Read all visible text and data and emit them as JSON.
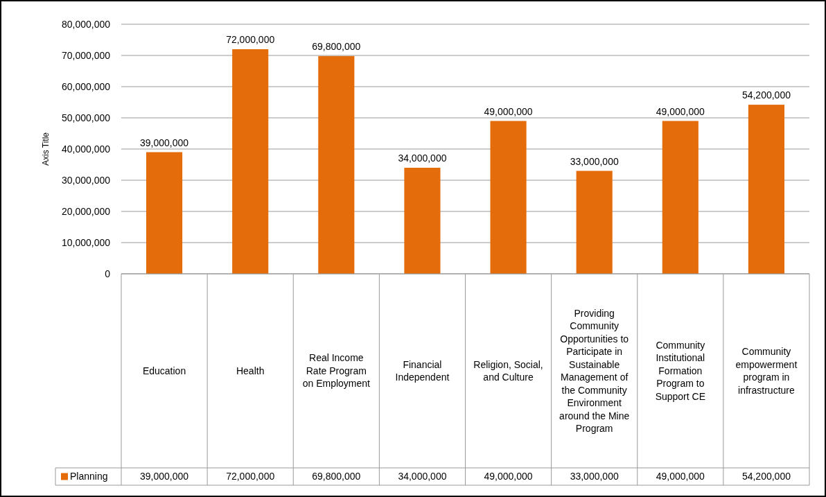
{
  "chart_data": {
    "type": "bar",
    "ylabel": "Axis Title",
    "categories": [
      "Education",
      "Health",
      "Real Income Rate Program on Employment",
      "Financial Independent",
      "Religion, Social, and Culture",
      "Providing Community Opportunities to Participate in Sustainable Management of the Community Environment around the Mine Program",
      "Community Institutional Formation Program to Support CE",
      "Community empowerment program in infrastructure"
    ],
    "series": [
      {
        "name": "Planning",
        "color": "#e46c0a",
        "values": [
          39000000,
          72000000,
          69800000,
          34000000,
          49000000,
          33000000,
          49000000,
          54200000
        ],
        "value_labels": [
          "39,000,000",
          "72,000,000",
          "69,800,000",
          "34,000,000",
          "49,000,000",
          "33,000,000",
          "49,000,000",
          "54,200,000"
        ]
      }
    ],
    "ylim": [
      0,
      80000000
    ],
    "yticks": [
      {
        "value": 0,
        "label": "0"
      },
      {
        "value": 10000000,
        "label": "10,000,000"
      },
      {
        "value": 20000000,
        "label": "20,000,000"
      },
      {
        "value": 30000000,
        "label": "30,000,000"
      },
      {
        "value": 40000000,
        "label": "40,000,000"
      },
      {
        "value": 50000000,
        "label": "50,000,000"
      },
      {
        "value": 60000000,
        "label": "60,000,000"
      },
      {
        "value": 70000000,
        "label": "70,000,000"
      },
      {
        "value": 80000000,
        "label": "80,000,000"
      }
    ],
    "grid": "y",
    "legend": "bottom left"
  }
}
